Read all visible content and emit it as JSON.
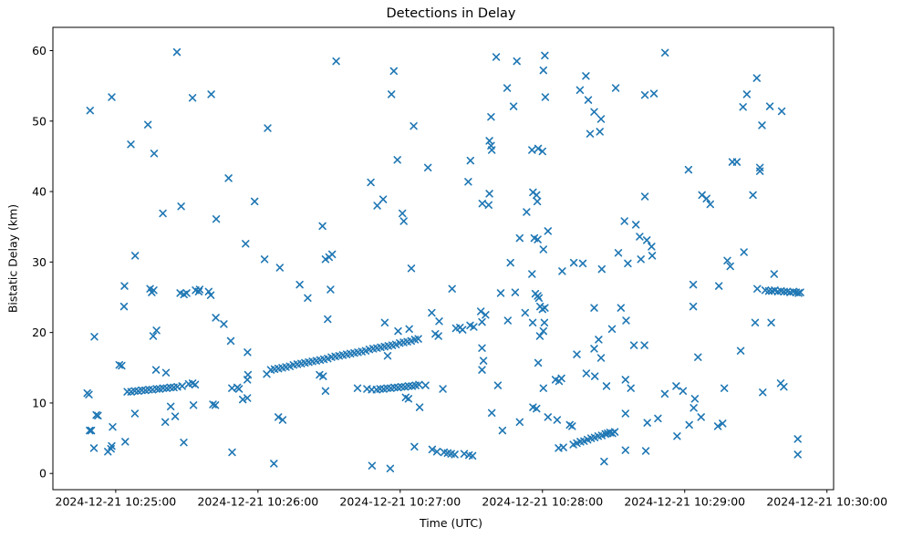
{
  "title": "Detections in Delay",
  "chart_data": {
    "type": "scatter",
    "title": "Detections in Delay",
    "xlabel": "Time (UTC)",
    "ylabel": "Bistatic Delay (km)",
    "marker": "x",
    "marker_color": "#1f77b4",
    "x_unit": "seconds after 2024-12-21 10:25:00 UTC",
    "xlim": [
      -26.5,
      302.8
    ],
    "ylim": [
      -2.3,
      63.3
    ],
    "grid": false,
    "legend": "none",
    "x_ticks": [
      {
        "t": 0,
        "label": "2024-12-21 10:25:00"
      },
      {
        "t": 60,
        "label": "2024-12-21 10:26:00"
      },
      {
        "t": 120,
        "label": "2024-12-21 10:27:00"
      },
      {
        "t": 180,
        "label": "2024-12-21 10:28:00"
      },
      {
        "t": 240,
        "label": "2024-12-21 10:29:00"
      },
      {
        "t": 300,
        "label": "2024-12-21 10:30:00"
      }
    ],
    "y_ticks": [
      0,
      10,
      20,
      30,
      40,
      50,
      60
    ],
    "points": [
      [
        25.8,
        59.8
      ],
      [
        -1.7,
        53.4
      ],
      [
        -10.8,
        51.5
      ],
      [
        32.4,
        53.3
      ],
      [
        40.3,
        53.8
      ],
      [
        13.6,
        49.5
      ],
      [
        6.4,
        46.7
      ],
      [
        16.2,
        45.4
      ],
      [
        47.6,
        41.9
      ],
      [
        93,
        58.5
      ],
      [
        117.3,
        57.1
      ],
      [
        116.3,
        53.8
      ],
      [
        64.1,
        49.0
      ],
      [
        125.7,
        49.3
      ],
      [
        118.8,
        44.5
      ],
      [
        131.7,
        43.4
      ],
      [
        107.6,
        41.3
      ],
      [
        160.5,
        59.1
      ],
      [
        169.2,
        58.5
      ],
      [
        181,
        59.3
      ],
      [
        180.4,
        57.2
      ],
      [
        198.3,
        56.4
      ],
      [
        195.8,
        54.4
      ],
      [
        210.9,
        54.7
      ],
      [
        165.1,
        54.7
      ],
      [
        181.2,
        53.4
      ],
      [
        199.3,
        53.0
      ],
      [
        167.8,
        52.1
      ],
      [
        158.3,
        50.6
      ],
      [
        201.8,
        51.3
      ],
      [
        204.7,
        50.3
      ],
      [
        200.1,
        48.2
      ],
      [
        204.2,
        48.5
      ],
      [
        157.6,
        47.2
      ],
      [
        158.3,
        46.5
      ],
      [
        158.6,
        45.9
      ],
      [
        175.6,
        45.9
      ],
      [
        178.2,
        46.1
      ],
      [
        180,
        45.7
      ],
      [
        149.6,
        44.4
      ],
      [
        148.7,
        41.4
      ],
      [
        231.7,
        59.7
      ],
      [
        223.2,
        53.7
      ],
      [
        227,
        53.9
      ],
      [
        270.4,
        56.1
      ],
      [
        266.2,
        53.8
      ],
      [
        264.6,
        52.0
      ],
      [
        275.9,
        52.1
      ],
      [
        280.9,
        51.4
      ],
      [
        272.6,
        49.4
      ],
      [
        241.6,
        43.1
      ],
      [
        260.1,
        44.2
      ],
      [
        262,
        44.2
      ],
      [
        271.7,
        43.4
      ],
      [
        271.7,
        42.9
      ],
      [
        19.9,
        36.9
      ],
      [
        27.6,
        37.9
      ],
      [
        42.4,
        36.1
      ],
      [
        54.8,
        32.6
      ],
      [
        8.2,
        30.9
      ],
      [
        3.7,
        26.6
      ],
      [
        14.5,
        26.2
      ],
      [
        16,
        26.0
      ],
      [
        15.2,
        25.7
      ],
      [
        27.2,
        25.6
      ],
      [
        28.8,
        25.4
      ],
      [
        29.9,
        25.6
      ],
      [
        33.7,
        26.0
      ],
      [
        35,
        25.8
      ],
      [
        35.4,
        26.1
      ],
      [
        39.2,
        25.8
      ],
      [
        40.1,
        25.3
      ],
      [
        3.5,
        23.7
      ],
      [
        42.2,
        22.1
      ],
      [
        45.6,
        21.2
      ],
      [
        17.2,
        20.3
      ],
      [
        15.8,
        19.5
      ],
      [
        58.6,
        38.6
      ],
      [
        112.8,
        38.9
      ],
      [
        110.3,
        38.0
      ],
      [
        120.9,
        36.9
      ],
      [
        121.5,
        35.8
      ],
      [
        87.2,
        35.1
      ],
      [
        91.3,
        31.1
      ],
      [
        88.5,
        30.4
      ],
      [
        90,
        30.7
      ],
      [
        62.8,
        30.4
      ],
      [
        69.2,
        29.2
      ],
      [
        124.7,
        29.1
      ],
      [
        77.6,
        26.8
      ],
      [
        90.6,
        26.1
      ],
      [
        81,
        24.9
      ],
      [
        89.4,
        21.9
      ],
      [
        113.5,
        21.4
      ],
      [
        133.3,
        22.8
      ],
      [
        136.4,
        21.6
      ],
      [
        119.1,
        20.2
      ],
      [
        123.8,
        20.5
      ],
      [
        134.8,
        19.8
      ],
      [
        136.1,
        19.5
      ],
      [
        157.6,
        39.7
      ],
      [
        154.6,
        38.3
      ],
      [
        157.3,
        38.1
      ],
      [
        176,
        39.9
      ],
      [
        177.5,
        39.5
      ],
      [
        177.8,
        38.6
      ],
      [
        173.3,
        37.1
      ],
      [
        214.6,
        35.8
      ],
      [
        219.4,
        35.3
      ],
      [
        182.3,
        34.4
      ],
      [
        170.4,
        33.4
      ],
      [
        176.6,
        33.4
      ],
      [
        178,
        33.2
      ],
      [
        180.4,
        31.8
      ],
      [
        212,
        31.3
      ],
      [
        166.5,
        29.9
      ],
      [
        193.2,
        29.9
      ],
      [
        197,
        29.8
      ],
      [
        216,
        29.8
      ],
      [
        205,
        29.0
      ],
      [
        188.3,
        28.7
      ],
      [
        175.6,
        28.3
      ],
      [
        141.9,
        26.2
      ],
      [
        162.4,
        25.6
      ],
      [
        168.5,
        25.7
      ],
      [
        177,
        25.5
      ],
      [
        178,
        25.2
      ],
      [
        178.5,
        24.9
      ],
      [
        179,
        23.7
      ],
      [
        180,
        23.3
      ],
      [
        181,
        23.5
      ],
      [
        201.8,
        23.5
      ],
      [
        213.1,
        23.5
      ],
      [
        154,
        23.0
      ],
      [
        156,
        22.5
      ],
      [
        172.7,
        22.8
      ],
      [
        165.4,
        21.7
      ],
      [
        175.9,
        21.4
      ],
      [
        180.8,
        21.4
      ],
      [
        154.5,
        21.5
      ],
      [
        143.5,
        20.6
      ],
      [
        145.2,
        20.7
      ],
      [
        146.3,
        20.4
      ],
      [
        149.5,
        21.0
      ],
      [
        151,
        20.8
      ],
      [
        209.3,
        20.5
      ],
      [
        215.3,
        21.7
      ],
      [
        180.4,
        20.2
      ],
      [
        178.9,
        19.5
      ],
      [
        223.2,
        39.3
      ],
      [
        247.3,
        39.5
      ],
      [
        249.2,
        39.0
      ],
      [
        250.8,
        38.2
      ],
      [
        268.8,
        39.5
      ],
      [
        221,
        33.6
      ],
      [
        224,
        33.1
      ],
      [
        226,
        32.2
      ],
      [
        226.3,
        30.9
      ],
      [
        221.5,
        30.4
      ],
      [
        265,
        31.4
      ],
      [
        258,
        30.2
      ],
      [
        259.2,
        29.4
      ],
      [
        277.7,
        28.3
      ],
      [
        243.6,
        26.8
      ],
      [
        254.4,
        26.6
      ],
      [
        270.6,
        26.2
      ],
      [
        274,
        26.0
      ],
      [
        275.5,
        25.9
      ],
      [
        276.8,
        25.9
      ],
      [
        278,
        26.0
      ],
      [
        279.3,
        25.8
      ],
      [
        280.6,
        25.9
      ],
      [
        281.9,
        25.8
      ],
      [
        283.2,
        25.8
      ],
      [
        284.5,
        25.7
      ],
      [
        285.8,
        25.8
      ],
      [
        287,
        25.7
      ],
      [
        288,
        25.6
      ],
      [
        288.8,
        25.7
      ],
      [
        243.6,
        23.7
      ],
      [
        269.7,
        21.4
      ],
      [
        276.5,
        21.4
      ],
      [
        -9,
        19.4
      ],
      [
        48.5,
        18.8
      ],
      [
        55.6,
        17.2
      ],
      [
        1.5,
        15.4
      ],
      [
        2.5,
        15.3
      ],
      [
        17,
        14.7
      ],
      [
        21.2,
        14.3
      ],
      [
        4.9,
        11.6
      ],
      [
        6.5,
        11.6
      ],
      [
        8,
        11.7
      ],
      [
        9.5,
        11.7
      ],
      [
        11,
        11.8
      ],
      [
        12.5,
        11.8
      ],
      [
        14,
        11.9
      ],
      [
        15.5,
        11.9
      ],
      [
        17.2,
        12.0
      ],
      [
        18.5,
        12.0
      ],
      [
        20,
        12.1
      ],
      [
        21.5,
        12.1
      ],
      [
        23,
        12.2
      ],
      [
        24.5,
        12.2
      ],
      [
        26,
        12.3
      ],
      [
        28,
        12.4
      ],
      [
        30.8,
        12.7
      ],
      [
        32.4,
        12.8
      ],
      [
        33.5,
        12.6
      ],
      [
        -12,
        11.4
      ],
      [
        -11.3,
        11.2
      ],
      [
        49,
        12.1
      ],
      [
        51.3,
        12.2
      ],
      [
        52,
        12.0
      ],
      [
        55.5,
        13.3
      ],
      [
        53.6,
        10.5
      ],
      [
        55.5,
        10.7
      ],
      [
        23.2,
        9.5
      ],
      [
        32.8,
        9.7
      ],
      [
        41,
        9.8
      ],
      [
        42,
        9.7
      ],
      [
        8.1,
        8.5
      ],
      [
        25.1,
        8.1
      ],
      [
        20.9,
        7.3
      ],
      [
        -8.2,
        8.3
      ],
      [
        -7.5,
        8.2
      ],
      [
        -11,
        6.1
      ],
      [
        -10.3,
        6.1
      ],
      [
        -1.3,
        6.6
      ],
      [
        4,
        4.5
      ],
      [
        28.7,
        4.4
      ],
      [
        -9.2,
        3.6
      ],
      [
        -3.3,
        3.1
      ],
      [
        -2,
        3.5
      ],
      [
        -1.7,
        3.9
      ],
      [
        49.1,
        3.0
      ],
      [
        65.4,
        14.7
      ],
      [
        67,
        14.8
      ],
      [
        68.6,
        14.9
      ],
      [
        70.2,
        15.0
      ],
      [
        71.8,
        15.1
      ],
      [
        73.4,
        15.2
      ],
      [
        75,
        15.4
      ],
      [
        76.6,
        15.5
      ],
      [
        78.2,
        15.6
      ],
      [
        79.8,
        15.7
      ],
      [
        81.4,
        15.8
      ],
      [
        83,
        15.9
      ],
      [
        84.6,
        16.0
      ],
      [
        86.2,
        16.1
      ],
      [
        87.8,
        16.2
      ],
      [
        89.4,
        16.3
      ],
      [
        91,
        16.5
      ],
      [
        92.6,
        16.6
      ],
      [
        94.2,
        16.7
      ],
      [
        95.8,
        16.8
      ],
      [
        97.4,
        16.9
      ],
      [
        99,
        17.0
      ],
      [
        100.6,
        17.1
      ],
      [
        102.2,
        17.2
      ],
      [
        103.8,
        17.3
      ],
      [
        105.4,
        17.4
      ],
      [
        107,
        17.6
      ],
      [
        108.6,
        17.7
      ],
      [
        110.2,
        17.8
      ],
      [
        111.8,
        17.9
      ],
      [
        113.4,
        18.0
      ],
      [
        115,
        18.1
      ],
      [
        116.6,
        18.2
      ],
      [
        118.2,
        18.3
      ],
      [
        119.8,
        18.5
      ],
      [
        121.4,
        18.6
      ],
      [
        123,
        18.7
      ],
      [
        124.6,
        18.8
      ],
      [
        126.2,
        19.0
      ],
      [
        127.6,
        19.1
      ],
      [
        114.7,
        16.7
      ],
      [
        63.7,
        14.1
      ],
      [
        55.8,
        14.0
      ],
      [
        86,
        14.0
      ],
      [
        87.5,
        13.8
      ],
      [
        88.5,
        11.7
      ],
      [
        102,
        12.1
      ],
      [
        106,
        12.0
      ],
      [
        108,
        11.9
      ],
      [
        110,
        11.9
      ],
      [
        111.5,
        12.0
      ],
      [
        113,
        12.0
      ],
      [
        114.5,
        12.1
      ],
      [
        116,
        12.1
      ],
      [
        117.5,
        12.2
      ],
      [
        119,
        12.2
      ],
      [
        120.5,
        12.3
      ],
      [
        122,
        12.3
      ],
      [
        123.5,
        12.4
      ],
      [
        125,
        12.4
      ],
      [
        126.5,
        12.5
      ],
      [
        127.9,
        12.6
      ],
      [
        130.7,
        12.5
      ],
      [
        122.3,
        10.8
      ],
      [
        123.5,
        10.6
      ],
      [
        128.2,
        9.4
      ],
      [
        68.6,
        8.0
      ],
      [
        70.4,
        7.6
      ],
      [
        126,
        3.8
      ],
      [
        133.5,
        3.4
      ],
      [
        135.5,
        3.1
      ],
      [
        66.7,
        1.4
      ],
      [
        108.1,
        1.1
      ],
      [
        115.8,
        0.7
      ],
      [
        154.5,
        17.8
      ],
      [
        155.1,
        16.0
      ],
      [
        154.5,
        14.7
      ],
      [
        203.7,
        19.0
      ],
      [
        194.5,
        16.9
      ],
      [
        201.8,
        17.7
      ],
      [
        204.7,
        16.4
      ],
      [
        218.6,
        18.2
      ],
      [
        178.2,
        15.7
      ],
      [
        161.2,
        12.5
      ],
      [
        138,
        12.0
      ],
      [
        185.5,
        13.3
      ],
      [
        187,
        13.1
      ],
      [
        188,
        13.5
      ],
      [
        180.4,
        12.1
      ],
      [
        198.5,
        14.2
      ],
      [
        202.1,
        13.8
      ],
      [
        207,
        12.4
      ],
      [
        215,
        13.3
      ],
      [
        217.3,
        12.1
      ],
      [
        158.6,
        8.6
      ],
      [
        176,
        9.4
      ],
      [
        177.5,
        9.2
      ],
      [
        170.4,
        7.3
      ],
      [
        182.3,
        8.0
      ],
      [
        186.2,
        7.6
      ],
      [
        191.5,
        6.9
      ],
      [
        192.5,
        6.7
      ],
      [
        215,
        8.5
      ],
      [
        163.1,
        6.1
      ],
      [
        186.8,
        3.6
      ],
      [
        188.8,
        3.7
      ],
      [
        193,
        4.1
      ],
      [
        194.5,
        4.3
      ],
      [
        196,
        4.5
      ],
      [
        197.5,
        4.6
      ],
      [
        199,
        4.8
      ],
      [
        200.5,
        5.0
      ],
      [
        202,
        5.1
      ],
      [
        203.5,
        5.3
      ],
      [
        205,
        5.4
      ],
      [
        206.5,
        5.6
      ],
      [
        207.5,
        5.7
      ],
      [
        208.5,
        5.8
      ],
      [
        209.5,
        5.7
      ],
      [
        210.5,
        5.9
      ],
      [
        138.5,
        3.0
      ],
      [
        140,
        2.9
      ],
      [
        141.5,
        2.8
      ],
      [
        143,
        2.7
      ],
      [
        147,
        2.8
      ],
      [
        149,
        2.6
      ],
      [
        150.5,
        2.5
      ],
      [
        215,
        3.3
      ],
      [
        206,
        1.7
      ],
      [
        223,
        18.2
      ],
      [
        245.6,
        16.5
      ],
      [
        263.6,
        17.4
      ],
      [
        231.6,
        11.3
      ],
      [
        236.4,
        12.4
      ],
      [
        239.3,
        11.7
      ],
      [
        256.7,
        12.1
      ],
      [
        272.9,
        11.5
      ],
      [
        280.5,
        12.8
      ],
      [
        281.8,
        12.3
      ],
      [
        244.3,
        10.6
      ],
      [
        243.8,
        9.3
      ],
      [
        246.9,
        8.0
      ],
      [
        224.2,
        7.2
      ],
      [
        228.7,
        7.8
      ],
      [
        241.9,
        6.9
      ],
      [
        254,
        6.7
      ],
      [
        256,
        7.1
      ],
      [
        236.8,
        5.3
      ],
      [
        223.6,
        3.2
      ],
      [
        287.7,
        4.9
      ],
      [
        287.7,
        2.7
      ]
    ]
  }
}
